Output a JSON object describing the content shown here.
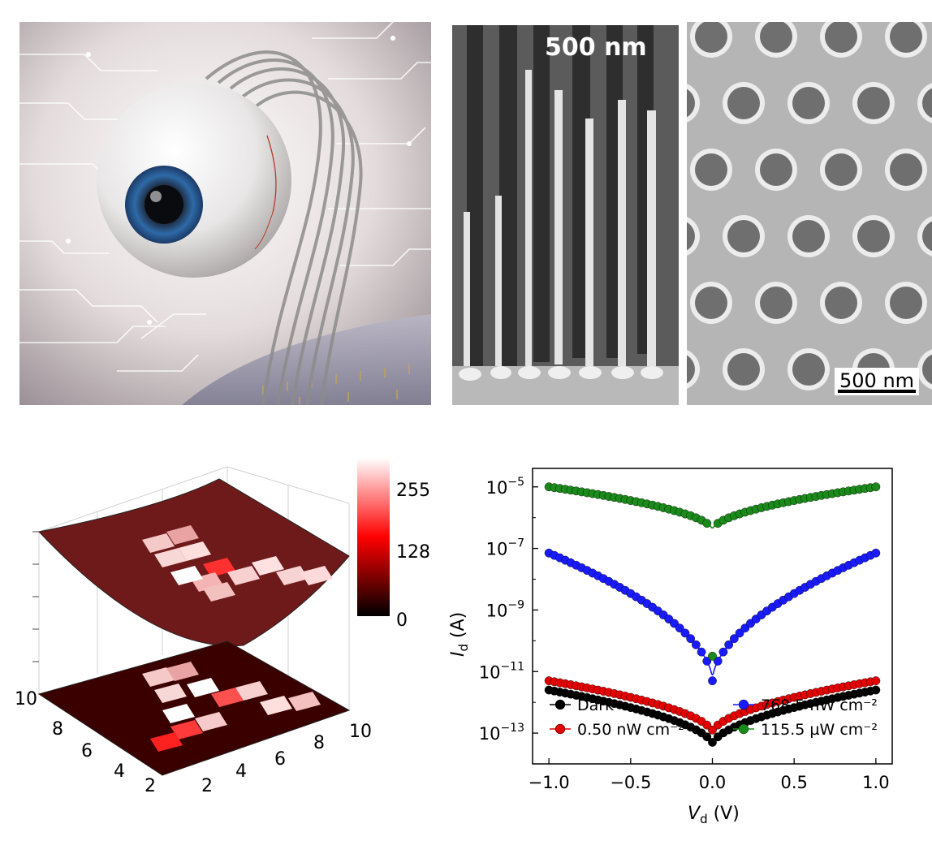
{
  "panel_b": {
    "scale_label": "500 nm"
  },
  "panel_c": {
    "scale_label": "500 nm"
  },
  "colorbar": {
    "ticks": [
      "255",
      "128",
      "0"
    ]
  },
  "surface_plot": {
    "x_ticks": [
      "2",
      "4",
      "6",
      "8",
      "10"
    ],
    "y_ticks": [
      "10",
      "8",
      "6",
      "4",
      "2"
    ]
  },
  "chart_data": {
    "type": "line",
    "xlabel_main": "V",
    "xlabel_sub": "d",
    "xlabel_unit": " (V)",
    "ylabel_main": "I",
    "ylabel_sub": "d",
    "ylabel_unit": " (A)",
    "xlim": [
      -1.1,
      1.1
    ],
    "ylim_log10": [
      -14.0,
      -4.4
    ],
    "x_tick_labels": [
      "−1.0",
      "−0.5",
      "0.0",
      "0.5",
      "1.0"
    ],
    "x_tick_values": [
      -1.0,
      -0.5,
      0.0,
      0.5,
      1.0
    ],
    "y_tick_exponents": [
      "−5",
      "−7",
      "−9",
      "−11",
      "−13"
    ],
    "y_tick_values_log10": [
      -5,
      -7,
      -9,
      -11,
      -13
    ],
    "y_tick_base": "10",
    "series": [
      {
        "name": "Dark",
        "color": "#000000",
        "log_at_1V": -11.6,
        "log_min": -13.4,
        "point_log_at_0": -13.3
      },
      {
        "name": "0.50 nW cm⁻²",
        "color": "#e30000",
        "log_at_1V": -11.3,
        "log_min": -13.0,
        "point_log_at_0": -12.9
      },
      {
        "name": "768.5 nW cm⁻²",
        "color": "#1a1aff",
        "log_at_1V": -7.15,
        "log_min": -11.3,
        "point_log_at_0": -11.3
      },
      {
        "name": "115.5 µW cm⁻²",
        "color": "#1a8a1a",
        "log_at_1V": -5.0,
        "log_min": -6.4,
        "point_log_at_0": -10.5
      }
    ],
    "legend": {
      "left": [
        "Dark",
        "0.50 nW cm⁻²"
      ],
      "right": [
        "768.5 nW cm⁻²",
        "115.5 µW cm⁻²"
      ]
    }
  }
}
